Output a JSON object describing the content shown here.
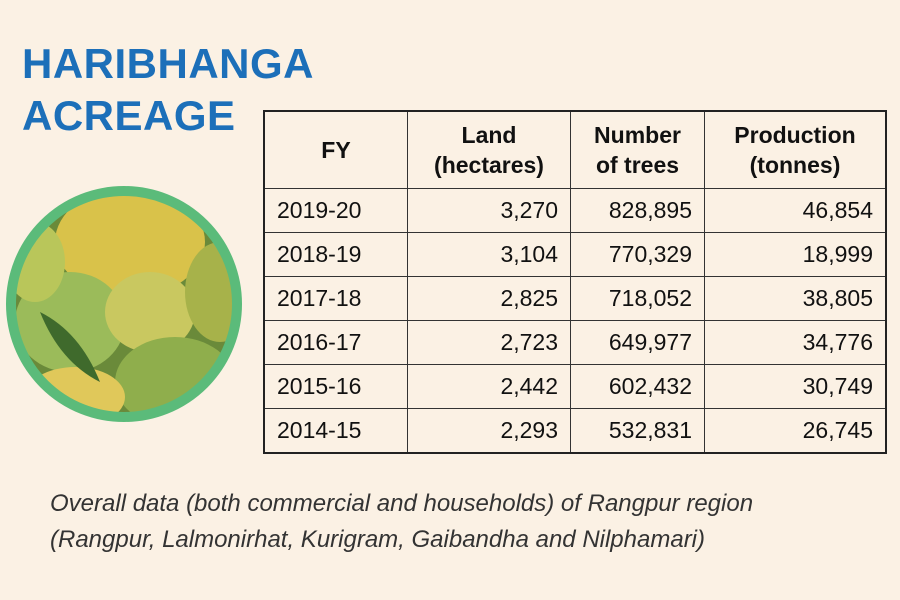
{
  "header": {
    "title": [
      "HARIBHANGA",
      "ACREAGE"
    ]
  },
  "table": {
    "columns": [
      [
        "FY"
      ],
      [
        "Land",
        "(hectares)"
      ],
      [
        "Number",
        "of trees"
      ],
      [
        "Production",
        "(tonnes)"
      ]
    ],
    "rows": [
      [
        "2019-20",
        "3,270",
        "828,895",
        "46,854"
      ],
      [
        "2018-19",
        "3,104",
        "770,329",
        "18,999"
      ],
      [
        "2017-18",
        "2,825",
        "718,052",
        "38,805"
      ],
      [
        "2016-17",
        "2,723",
        "649,977",
        "34,776"
      ],
      [
        "2015-16",
        "2,442",
        "602,432",
        "30,749"
      ],
      [
        "2014-15",
        "2,293",
        "532,831",
        "26,745"
      ]
    ]
  },
  "caption": [
    "Overall data (both commercial and households) of Rangpur region",
    "(Rangpur, Lalmonirhat, Kurigram, Gaibandha and Nilphamari)"
  ]
}
